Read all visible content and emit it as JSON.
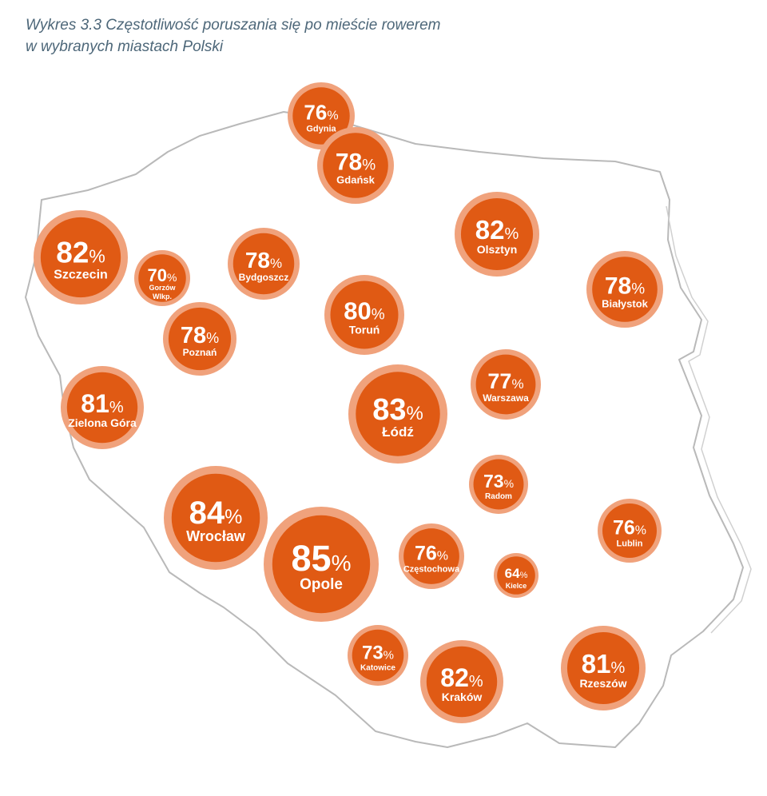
{
  "title": "Wykres 3.3 Częstotliwość poruszania się po mieście rowerem w wybranych miastach Polski",
  "chart_data": {
    "type": "bubble-map",
    "title": "Wykres 3.3 Częstotliwość poruszania się po mieście rowerem w wybranych miastach Polski",
    "unit": "%",
    "colors": {
      "inner": "#e05a14",
      "ring": "#f0a27c"
    },
    "points": [
      {
        "city": "Gdynia",
        "value": 76
      },
      {
        "city": "Gdańsk",
        "value": 78
      },
      {
        "city": "Olsztyn",
        "value": 82
      },
      {
        "city": "Szczecin",
        "value": 82
      },
      {
        "city": "Gorzów Wlkp.",
        "value": 70
      },
      {
        "city": "Bydgoszcz",
        "value": 78
      },
      {
        "city": "Białystok",
        "value": 78
      },
      {
        "city": "Toruń",
        "value": 80
      },
      {
        "city": "Poznań",
        "value": 78
      },
      {
        "city": "Warszawa",
        "value": 77
      },
      {
        "city": "Zielona Góra",
        "value": 81
      },
      {
        "city": "Łódź",
        "value": 83
      },
      {
        "city": "Radom",
        "value": 73
      },
      {
        "city": "Wrocław",
        "value": 84
      },
      {
        "city": "Lublin",
        "value": 76
      },
      {
        "city": "Opole",
        "value": 85
      },
      {
        "city": "Częstochowa",
        "value": 76
      },
      {
        "city": "Kielce",
        "value": 64
      },
      {
        "city": "Katowice",
        "value": 73
      },
      {
        "city": "Kraków",
        "value": 82
      },
      {
        "city": "Rzeszów",
        "value": 81
      }
    ]
  }
}
